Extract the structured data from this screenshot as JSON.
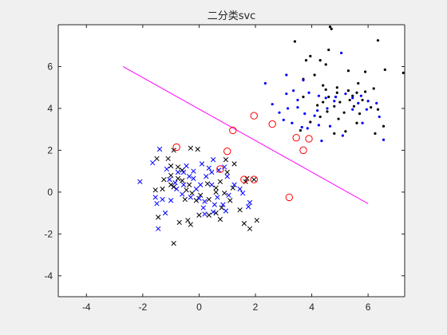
{
  "chart_data": {
    "type": "scatter",
    "title": "二分类svc",
    "xlabel": "",
    "ylabel": "",
    "xlim": [
      -5,
      7.3
    ],
    "ylim": [
      -5,
      8
    ],
    "xticks": [
      -4,
      -2,
      0,
      2,
      4,
      6
    ],
    "yticks": [
      -4,
      -2,
      0,
      2,
      4,
      6
    ],
    "xtick_labels": [
      "-4",
      "-2",
      "0",
      "2",
      "4",
      "6"
    ],
    "ytick_labels": [
      "-4",
      "-2",
      "0",
      "2",
      "4",
      "6"
    ],
    "grid": false,
    "legend": "none",
    "colors": {
      "figure_bg": "#f0f0f0",
      "axes_bg": "#ffffff",
      "axis": "#262626",
      "positive_train": "#000000",
      "positive_test": "#0000ff",
      "boundary": "#ff00ff",
      "support_ring": "#ff0000"
    },
    "boundary_line": [
      {
        "x": -2.7,
        "y": 6.0
      },
      {
        "x": 6.0,
        "y": -0.55
      }
    ],
    "series": [
      {
        "marker": "dot",
        "color": "#000000",
        "points": [
          [
            3.4,
            7.2
          ],
          [
            4.7,
            7.8
          ],
          [
            4.65,
            7.9
          ],
          [
            6.35,
            7.25
          ],
          [
            7.25,
            5.7
          ],
          [
            4.6,
            6.8
          ],
          [
            4.3,
            6.3
          ],
          [
            3.8,
            6.3
          ],
          [
            3.95,
            6.5
          ],
          [
            4.5,
            6.1
          ],
          [
            5.3,
            5.8
          ],
          [
            5.9,
            5.75
          ],
          [
            6.6,
            5.85
          ],
          [
            3.7,
            5.4
          ],
          [
            5.65,
            5.2
          ],
          [
            4.9,
            5.0
          ],
          [
            4.4,
            5.1
          ],
          [
            4.1,
            5.6
          ],
          [
            3.7,
            4.55
          ],
          [
            4.5,
            4.9
          ],
          [
            4.9,
            4.75
          ],
          [
            5.3,
            4.85
          ],
          [
            5.6,
            4.75
          ],
          [
            5.9,
            4.8
          ],
          [
            6.2,
            4.95
          ],
          [
            5.0,
            4.3
          ],
          [
            5.35,
            4.4
          ],
          [
            5.8,
            4.4
          ],
          [
            4.4,
            4.3
          ],
          [
            4.8,
            4.1
          ],
          [
            4.2,
            4.15
          ],
          [
            5.5,
            4.1
          ],
          [
            6.1,
            4.05
          ],
          [
            4.55,
            3.85
          ],
          [
            5.15,
            3.8
          ],
          [
            5.7,
            3.75
          ],
          [
            6.35,
            3.95
          ],
          [
            4.3,
            3.6
          ],
          [
            3.95,
            3.35
          ],
          [
            5.6,
            3.3
          ],
          [
            6.55,
            3.15
          ],
          [
            6.25,
            2.8
          ],
          [
            4.8,
            2.8
          ],
          [
            3.6,
            2.95
          ],
          [
            5.2,
            2.9
          ],
          [
            4.95,
            3.5
          ],
          [
            5.45,
            4.6
          ],
          [
            4.6,
            4.55
          ]
        ]
      },
      {
        "marker": "dot",
        "color": "#0000ff",
        "points": [
          [
            2.35,
            5.2
          ],
          [
            3.1,
            5.6
          ],
          [
            3.7,
            5.35
          ],
          [
            3.35,
            4.85
          ],
          [
            3.1,
            4.7
          ],
          [
            3.9,
            4.75
          ],
          [
            3.5,
            4.4
          ],
          [
            4.25,
            4.6
          ],
          [
            4.5,
            4.5
          ],
          [
            4.85,
            4.55
          ],
          [
            5.2,
            4.7
          ],
          [
            5.45,
            4.5
          ],
          [
            5.75,
            4.6
          ],
          [
            6.0,
            4.35
          ],
          [
            6.3,
            4.25
          ],
          [
            6.4,
            3.6
          ],
          [
            5.95,
            3.95
          ],
          [
            5.65,
            4.25
          ],
          [
            4.1,
            3.65
          ],
          [
            3.75,
            3.75
          ],
          [
            3.15,
            4.0
          ],
          [
            2.6,
            4.2
          ],
          [
            2.85,
            3.8
          ],
          [
            3.3,
            3.3
          ],
          [
            3.85,
            3.05
          ],
          [
            4.25,
            3.2
          ],
          [
            4.65,
            3.15
          ],
          [
            5.1,
            2.7
          ],
          [
            5.45,
            3.95
          ],
          [
            4.35,
            2.45
          ],
          [
            3.65,
            3.1
          ],
          [
            4.55,
            4.0
          ],
          [
            5.8,
            3.3
          ],
          [
            6.55,
            2.5
          ],
          [
            3.0,
            3.45
          ],
          [
            4.8,
            4.35
          ],
          [
            5.05,
            6.65
          ],
          [
            3.5,
            4.05
          ],
          [
            4.2,
            3.9
          ]
        ]
      },
      {
        "marker": "x",
        "color": "#000000",
        "points": [
          [
            -1.5,
            1.6
          ],
          [
            -1.1,
            1.6
          ],
          [
            -1.0,
            1.25
          ],
          [
            -0.75,
            1.2
          ],
          [
            -1.0,
            0.8
          ],
          [
            -1.25,
            0.6
          ],
          [
            -1.0,
            0.35
          ],
          [
            -1.3,
            0.15
          ],
          [
            -0.6,
            0.55
          ],
          [
            -0.35,
            0.35
          ],
          [
            -0.45,
            0.1
          ],
          [
            -0.25,
            -0.05
          ],
          [
            0.05,
            -0.15
          ],
          [
            -0.1,
            -0.4
          ],
          [
            0.35,
            -0.35
          ],
          [
            0.6,
            0.2
          ],
          [
            0.75,
            0.5
          ],
          [
            1.0,
            0.95
          ],
          [
            1.25,
            1.35
          ],
          [
            0.95,
            1.55
          ],
          [
            0.6,
            0.0
          ],
          [
            0.3,
            0.4
          ],
          [
            0.9,
            -0.05
          ],
          [
            1.1,
            -0.4
          ],
          [
            0.8,
            -0.75
          ],
          [
            0.6,
            -1.0
          ],
          [
            0.35,
            -1.1
          ],
          [
            0.0,
            -1.1
          ],
          [
            -0.4,
            -1.35
          ],
          [
            -0.3,
            -1.55
          ],
          [
            -0.7,
            -1.45
          ],
          [
            -1.45,
            -1.2
          ],
          [
            -0.9,
            -2.45
          ],
          [
            -0.9,
            2.0
          ],
          [
            -0.75,
            0.65
          ],
          [
            -0.3,
            2.1
          ],
          [
            -0.05,
            2.05
          ],
          [
            -0.9,
            0.25
          ],
          [
            -0.6,
            1.05
          ],
          [
            1.65,
            0.5
          ],
          [
            1.95,
            0.6
          ],
          [
            1.7,
            0.65
          ],
          [
            1.8,
            -1.75
          ],
          [
            1.6,
            -1.5
          ],
          [
            0.75,
            -1.3
          ],
          [
            1.45,
            -0.85
          ],
          [
            2.05,
            -1.35
          ],
          [
            1.2,
            0.2
          ],
          [
            -1.55,
            0.1
          ],
          [
            -0.5,
            -0.35
          ]
        ]
      },
      {
        "marker": "x",
        "color": "#0000ff",
        "points": [
          [
            -1.4,
            2.05
          ],
          [
            -1.65,
            1.4
          ],
          [
            -2.1,
            0.5
          ],
          [
            -1.55,
            -0.25
          ],
          [
            -1.3,
            -0.35
          ],
          [
            -1.5,
            -0.55
          ],
          [
            -1.2,
            -1.0
          ],
          [
            -1.45,
            -1.75
          ],
          [
            -1.0,
            -0.4
          ],
          [
            -0.85,
            0.45
          ],
          [
            -0.55,
            0.95
          ],
          [
            -0.45,
            1.25
          ],
          [
            -0.2,
            1.0
          ],
          [
            -0.2,
            0.65
          ],
          [
            0.05,
            0.35
          ],
          [
            -0.1,
            0.15
          ],
          [
            0.0,
            -0.3
          ],
          [
            0.2,
            -0.45
          ],
          [
            0.25,
            0.75
          ],
          [
            0.45,
            0.35
          ],
          [
            0.45,
            0.95
          ],
          [
            0.65,
            -0.25
          ],
          [
            0.55,
            -0.6
          ],
          [
            0.85,
            -0.6
          ],
          [
            1.05,
            -0.15
          ],
          [
            1.25,
            0.35
          ],
          [
            0.9,
            1.2
          ],
          [
            0.7,
            1.05
          ],
          [
            0.35,
            1.15
          ],
          [
            0.1,
            1.35
          ],
          [
            0.5,
            1.55
          ],
          [
            0.15,
            -0.75
          ],
          [
            -0.3,
            -0.25
          ],
          [
            -0.6,
            -0.1
          ],
          [
            -0.8,
            0.15
          ],
          [
            -1.05,
            0.6
          ],
          [
            -0.75,
            0.95
          ],
          [
            -1.15,
            1.1
          ],
          [
            1.55,
            -0.05
          ],
          [
            1.75,
            -0.7
          ],
          [
            1.8,
            -0.5
          ],
          [
            1.45,
            0.15
          ],
          [
            0.95,
            -0.9
          ],
          [
            0.5,
            -0.95
          ],
          [
            0.2,
            -1.05
          ],
          [
            1.0,
            0.75
          ],
          [
            -0.55,
            0.35
          ],
          [
            -0.35,
            0.75
          ]
        ]
      },
      {
        "marker": "ring",
        "color": "#ff0000",
        "points": [
          [
            -0.8,
            2.15
          ],
          [
            1.0,
            1.95
          ],
          [
            1.2,
            2.95
          ],
          [
            1.95,
            3.65
          ],
          [
            2.6,
            3.25
          ],
          [
            3.45,
            2.6
          ],
          [
            3.9,
            2.55
          ],
          [
            3.7,
            2.0
          ],
          [
            0.75,
            1.1
          ],
          [
            1.6,
            0.6
          ],
          [
            1.95,
            0.6
          ],
          [
            3.2,
            -0.25
          ]
        ]
      }
    ]
  }
}
